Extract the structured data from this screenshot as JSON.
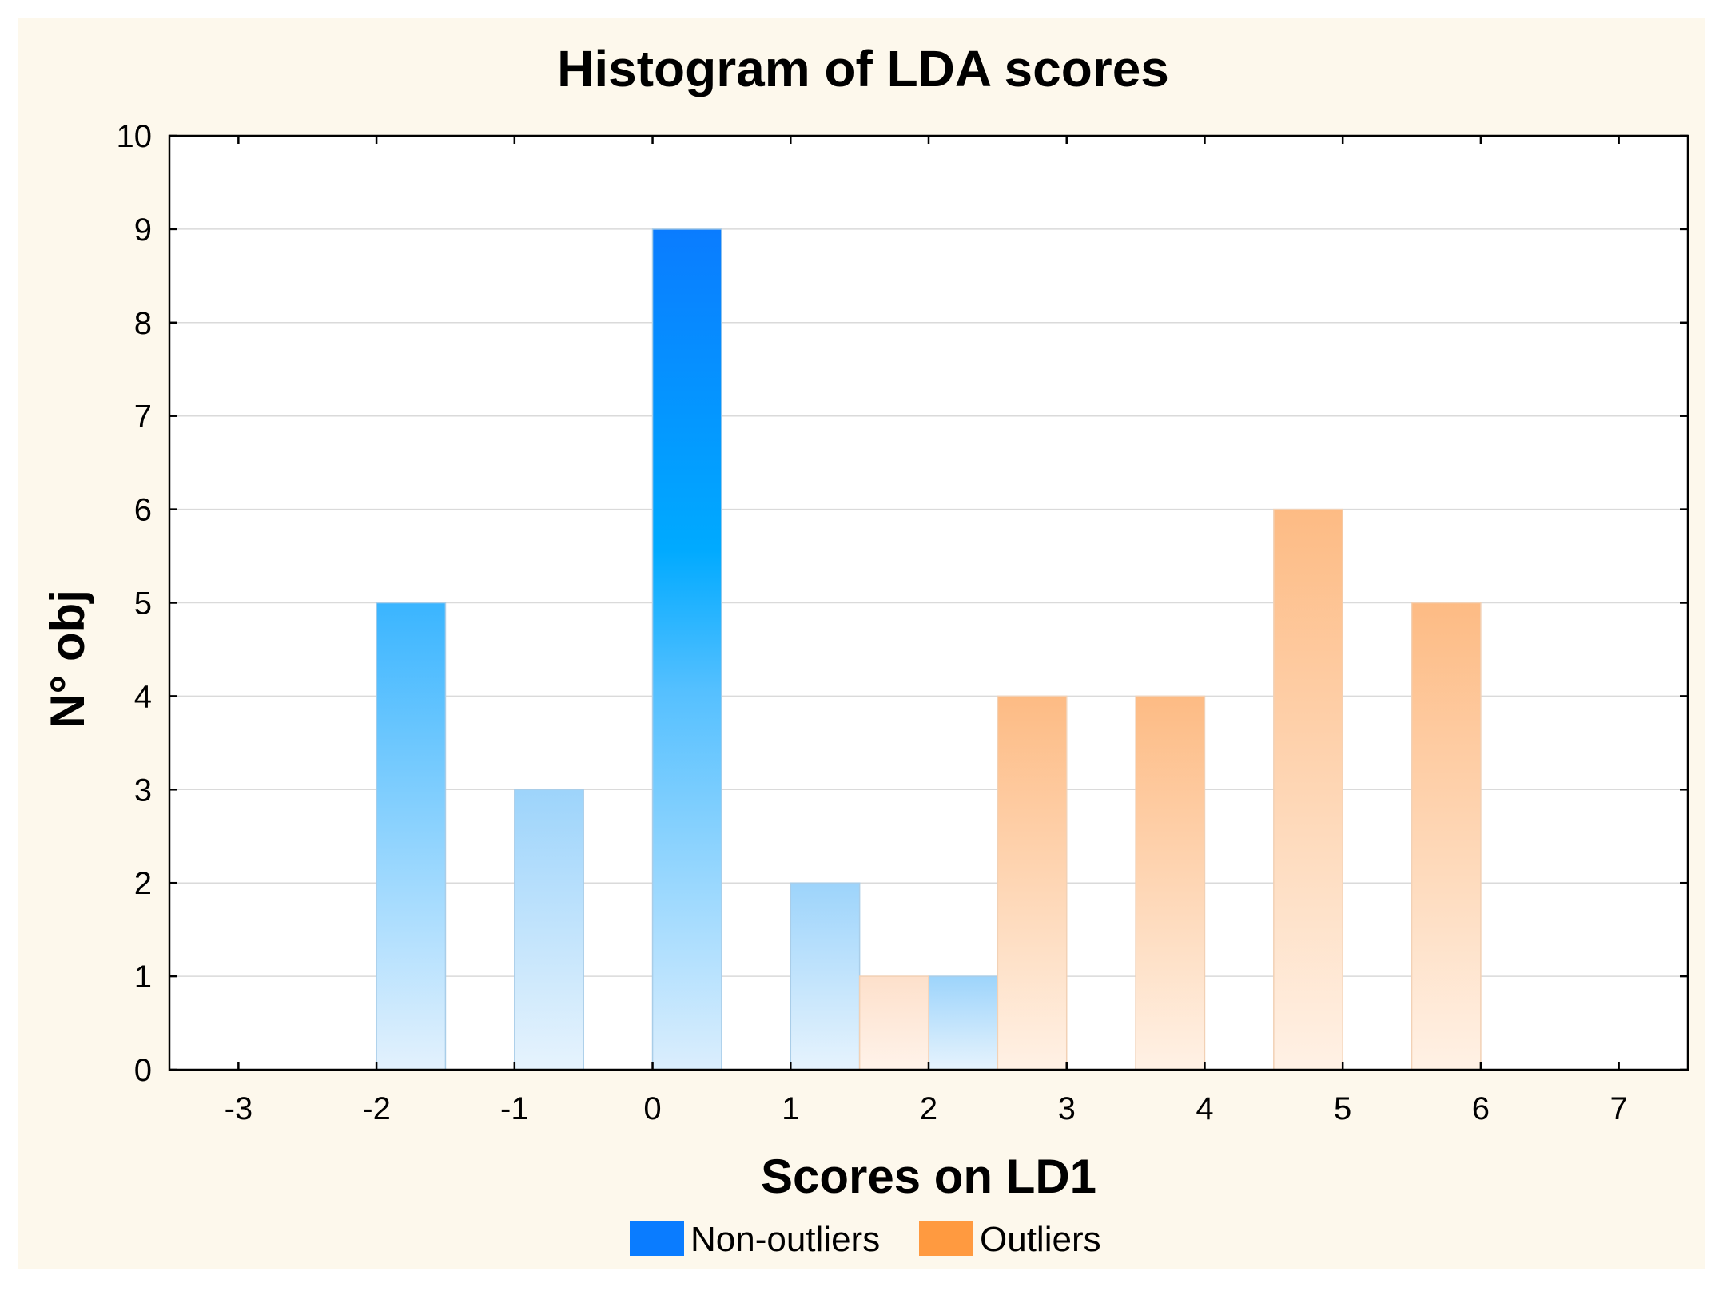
{
  "chart_data": {
    "type": "bar",
    "title": "Histogram of LDA scores",
    "xlabel": "Scores on LD1",
    "ylabel": "N° obj",
    "xlim": [
      -3.5,
      7.5
    ],
    "ylim": [
      0,
      10
    ],
    "x_ticks": [
      -3,
      -2,
      -1,
      0,
      1,
      2,
      3,
      4,
      5,
      6,
      7
    ],
    "y_ticks": [
      0,
      1,
      2,
      3,
      4,
      5,
      6,
      7,
      8,
      9,
      10
    ],
    "grid": true,
    "legend_position": "bottom-center",
    "series": [
      {
        "name": "Non-outliers",
        "color": "#0a7cff",
        "bars": [
          {
            "from": -2,
            "to": -1.5,
            "value": 5
          },
          {
            "from": -1,
            "to": -0.5,
            "value": 3
          },
          {
            "from": 0,
            "to": 0.5,
            "value": 9
          },
          {
            "from": 1,
            "to": 1.5,
            "value": 2
          },
          {
            "from": 2,
            "to": 2.5,
            "value": 1
          }
        ]
      },
      {
        "name": "Outliers",
        "color": "#ff9a40",
        "bars": [
          {
            "from": 1.5,
            "to": 2,
            "value": 1
          },
          {
            "from": 2.5,
            "to": 3,
            "value": 4
          },
          {
            "from": 3.5,
            "to": 4,
            "value": 4
          },
          {
            "from": 4.5,
            "to": 5,
            "value": 6
          },
          {
            "from": 5.5,
            "to": 6,
            "value": 5
          }
        ]
      }
    ]
  }
}
